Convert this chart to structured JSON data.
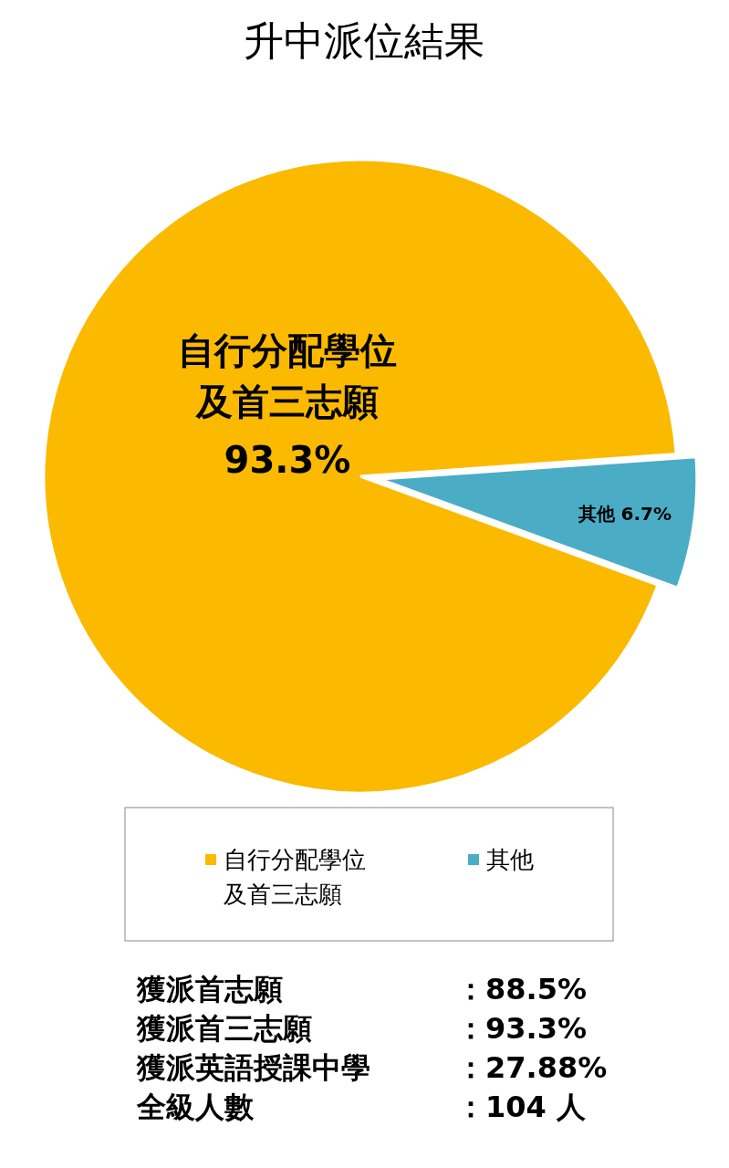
{
  "chart_data": {
    "type": "pie",
    "title": "升中派位結果",
    "categories": [
      "自行分配學位及首三志願",
      "其他"
    ],
    "values": [
      93.3,
      6.7
    ],
    "colors": [
      "#fbba00",
      "#4bacc6"
    ],
    "value_labels": [
      "93.3%",
      "6.7%"
    ],
    "legend": "bottom",
    "annotations": [
      "獲派首志願：88.5%",
      "獲派首三志願：93.3%",
      "獲派英語授課中學：27.88%",
      "全級人數：104 人"
    ]
  }
}
